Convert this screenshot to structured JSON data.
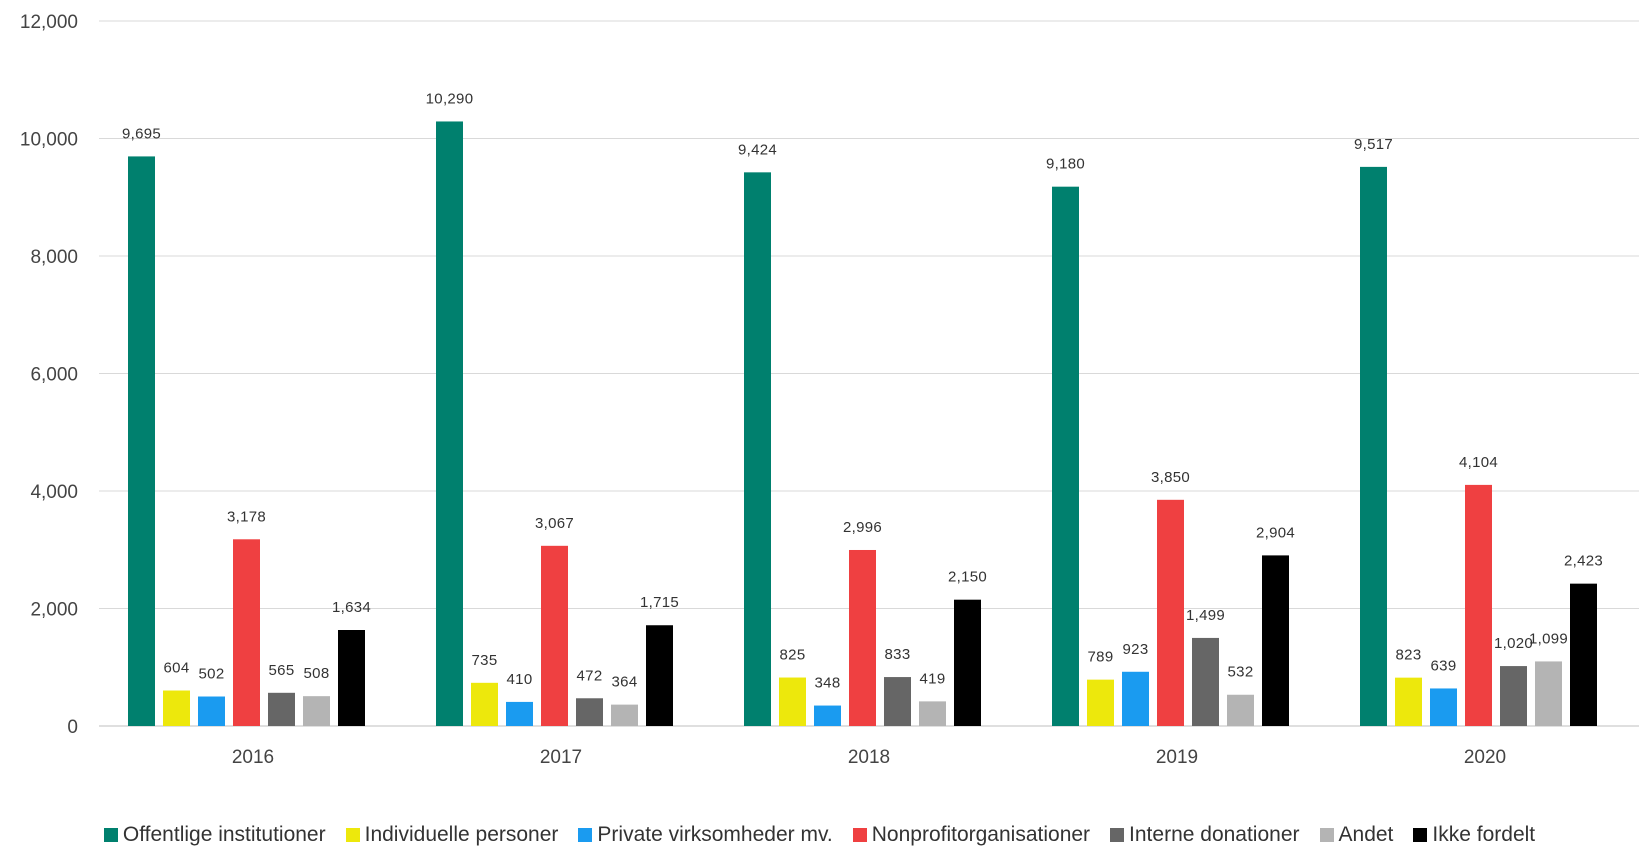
{
  "chart_data": {
    "type": "bar",
    "categories": [
      "2016",
      "2017",
      "2018",
      "2019",
      "2020"
    ],
    "series": [
      {
        "name": "Offentlige institutioner",
        "color": "#00806E",
        "values": [
          9695,
          10290,
          9424,
          9180,
          9517
        ],
        "labels": [
          "9,695",
          "10,290",
          "9,424",
          "9,180",
          "9,517"
        ]
      },
      {
        "name": "Individuelle personer",
        "color": "#EDE80C",
        "values": [
          604,
          735,
          825,
          789,
          823
        ],
        "labels": [
          "604",
          "735",
          "825",
          "789",
          "823"
        ]
      },
      {
        "name": "Private virksomheder mv.",
        "color": "#1A9BF0",
        "values": [
          502,
          410,
          348,
          923,
          639
        ],
        "labels": [
          "502",
          "410",
          "348",
          "923",
          "639"
        ]
      },
      {
        "name": "Nonprofitorganisationer",
        "color": "#EF4041",
        "values": [
          3178,
          3067,
          2996,
          3850,
          4104
        ],
        "labels": [
          "3,178",
          "3,067",
          "2,996",
          "3,850",
          "4,104"
        ]
      },
      {
        "name": "Interne donationer",
        "color": "#666666",
        "values": [
          565,
          472,
          833,
          1499,
          1020
        ],
        "labels": [
          "565",
          "472",
          "833",
          "1,499",
          "1,020"
        ]
      },
      {
        "name": "Andet",
        "color": "#B4B4B4",
        "values": [
          508,
          364,
          419,
          532,
          1099
        ],
        "labels": [
          "508",
          "364",
          "419",
          "532",
          "1,099"
        ]
      },
      {
        "name": "Ikke fordelt",
        "color": "#000000",
        "values": [
          1634,
          1715,
          2150,
          2904,
          2423
        ],
        "labels": [
          "1,634",
          "1,715",
          "2,150",
          "2,904",
          "2,423"
        ]
      }
    ],
    "yticks": [
      "0",
      "2,000",
      "4,000",
      "6,000",
      "8,000",
      "10,000",
      "12,000"
    ],
    "ylim": [
      0,
      12000
    ],
    "grid": true,
    "legend": "bottom",
    "colors": {
      "grid": "#D9D9D9",
      "text": "#444444"
    }
  }
}
